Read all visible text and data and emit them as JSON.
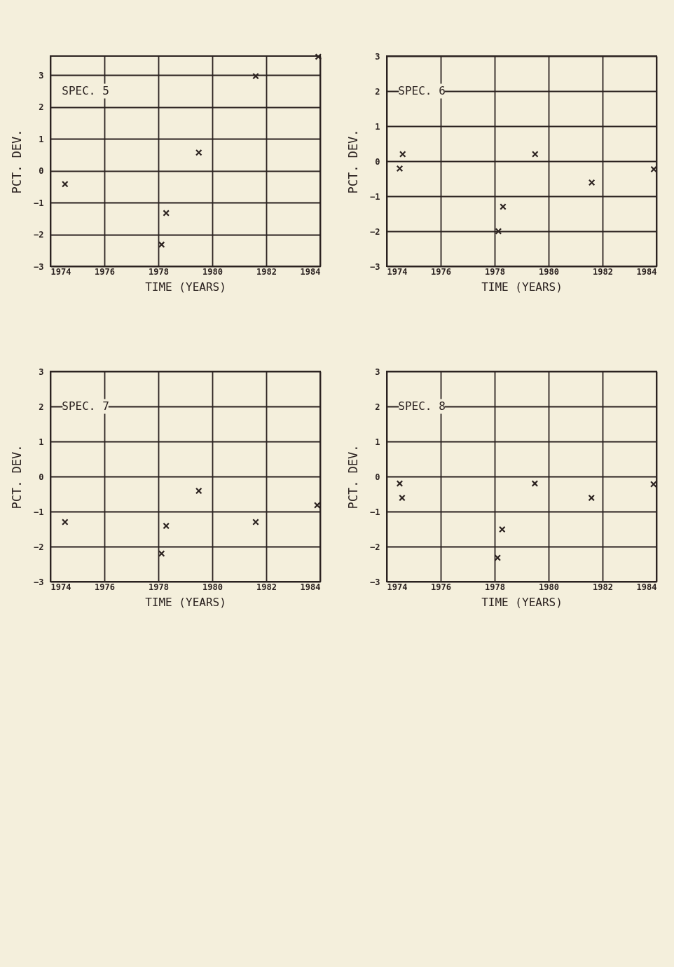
{
  "chart_data": [
    {
      "type": "scatter",
      "annotations": [
        "SPEC. 5"
      ],
      "xlabel": "TIME (YEARS)",
      "ylabel": "PCT. DEV.",
      "xlim": [
        1974,
        1984
      ],
      "ylim": [
        -3,
        3.6
      ],
      "xticks": [
        1974,
        1976,
        1978,
        1980,
        1982,
        1984
      ],
      "yticks": [
        -3,
        -2,
        -1,
        0,
        1,
        2,
        3
      ],
      "grid": true,
      "marker": "cross",
      "series": [
        {
          "color": "#2b2220",
          "x": [
            1974.54,
            1978.12,
            1978.29,
            1979.5,
            1981.61,
            1983.93
          ],
          "values": [
            -0.42,
            -2.32,
            -1.33,
            0.57,
            2.97,
            3.58
          ]
        }
      ]
    },
    {
      "type": "scatter",
      "annotations": [
        "SPEC. 6"
      ],
      "xlabel": "TIME (YEARS)",
      "ylabel": "PCT. DEV.",
      "xlim": [
        1974,
        1984
      ],
      "ylim": [
        -3,
        3
      ],
      "xticks": [
        1974,
        1976,
        1978,
        1980,
        1982,
        1984
      ],
      "yticks": [
        -3,
        -2,
        -1,
        0,
        1,
        2,
        3
      ],
      "grid": true,
      "marker": "cross",
      "series": [
        {
          "color": "#2b2220",
          "x": [
            1974.48,
            1974.59,
            1978.14,
            1978.31,
            1979.5,
            1981.6,
            1983.9
          ],
          "values": [
            -0.21,
            0.2,
            -2.0,
            -1.3,
            0.2,
            -0.61,
            -0.23
          ]
        }
      ]
    },
    {
      "type": "scatter",
      "annotations": [
        "SPEC. 7"
      ],
      "xlabel": "TIME (YEARS)",
      "ylabel": "PCT. DEV.",
      "xlim": [
        1974,
        1984
      ],
      "ylim": [
        -3,
        3
      ],
      "xticks": [
        1974,
        1976,
        1978,
        1980,
        1982,
        1984
      ],
      "yticks": [
        -3,
        -2,
        -1,
        0,
        1,
        2,
        3
      ],
      "grid": true,
      "marker": "cross",
      "series": [
        {
          "color": "#2b2220",
          "x": [
            1974.54,
            1978.12,
            1978.29,
            1979.5,
            1981.61,
            1983.89
          ],
          "values": [
            -1.3,
            -2.2,
            -1.41,
            -0.41,
            -1.3,
            -0.82
          ]
        }
      ]
    },
    {
      "type": "scatter",
      "annotations": [
        "SPEC. 8"
      ],
      "xlabel": "TIME (YEARS)",
      "ylabel": "PCT. DEV.",
      "xlim": [
        1974,
        1984
      ],
      "ylim": [
        -3,
        3
      ],
      "xticks": [
        1974,
        1976,
        1978,
        1980,
        1982,
        1984
      ],
      "yticks": [
        -3,
        -2,
        -1,
        0,
        1,
        2,
        3
      ],
      "grid": true,
      "marker": "cross",
      "series": [
        {
          "color": "#2b2220",
          "x": [
            1974.48,
            1974.57,
            1978.11,
            1978.28,
            1979.49,
            1981.59,
            1983.89
          ],
          "values": [
            -0.2,
            -0.61,
            -2.32,
            -1.51,
            -0.2,
            -0.61,
            -0.22
          ]
        }
      ]
    }
  ]
}
